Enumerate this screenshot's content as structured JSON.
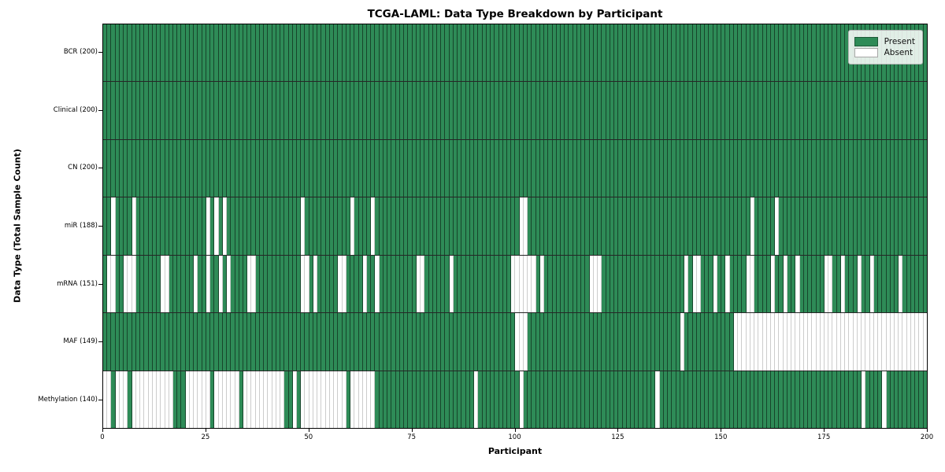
{
  "title": "TCGA-LAML: Data Type Breakdown by Participant",
  "x_axis": {
    "label": "Participant",
    "ticks": [
      0,
      25,
      50,
      75,
      100,
      125,
      150,
      175,
      200
    ]
  },
  "y_axis": {
    "label": "Data Type (Total Sample Count)"
  },
  "legend": {
    "present_label": "Present",
    "absent_label": "Absent"
  },
  "colors": {
    "present": "#2e8b57",
    "absent": "#ffffff",
    "cell_edge_on_present": "rgba(0,0,0,0.50)",
    "cell_edge_on_absent": "rgba(0,0,0,0.20)",
    "row_separator": "rgba(0,0,0,0.85)",
    "spine": "#000000",
    "legend_bg": "rgba(255,255,255,0.85)",
    "legend_border": "#b4b4b4"
  },
  "chart_data": {
    "type": "heatmap",
    "title": "TCGA-LAML: Data Type Breakdown by Participant",
    "xlabel": "Participant",
    "ylabel": "Data Type (Total Sample Count)",
    "x_range": [
      0,
      200
    ],
    "n_participants": 200,
    "grid": false,
    "legend_position": "upper right",
    "legend_entries": [
      "Present",
      "Absent"
    ],
    "rows": [
      {
        "key": "bcr",
        "label": "BCR (200)",
        "data_type": "BCR",
        "present_count": 200,
        "absent_participants": []
      },
      {
        "key": "clinical",
        "label": "Clinical (200)",
        "data_type": "Clinical",
        "present_count": 200,
        "absent_participants": []
      },
      {
        "key": "cn",
        "label": "CN (200)",
        "data_type": "CN",
        "present_count": 200,
        "absent_participants": []
      },
      {
        "key": "mir",
        "label": "miR (188)",
        "data_type": "miR",
        "present_count": 188,
        "absent_participants": [
          2,
          7,
          25,
          27,
          29,
          48,
          60,
          65,
          101,
          102,
          157,
          163
        ]
      },
      {
        "key": "mrna",
        "label": "mRNA (151)",
        "data_type": "mRNA",
        "present_count": 151,
        "absent_participants": [
          1,
          2,
          5,
          6,
          7,
          14,
          15,
          22,
          25,
          28,
          30,
          35,
          36,
          48,
          49,
          51,
          57,
          58,
          63,
          66,
          76,
          77,
          84,
          99,
          100,
          101,
          102,
          103,
          104,
          106,
          118,
          119,
          120,
          141,
          143,
          144,
          148,
          151,
          156,
          157,
          162,
          165,
          168,
          175,
          176,
          179,
          183,
          186,
          193
        ]
      },
      {
        "key": "maf",
        "label": "MAF (149)",
        "data_type": "MAF",
        "present_count": 149,
        "absent_participants": [
          100,
          101,
          102,
          140,
          153,
          154,
          155,
          156,
          157,
          158,
          159,
          160,
          161,
          162,
          163,
          164,
          165,
          166,
          167,
          168,
          169,
          170,
          171,
          172,
          173,
          174,
          175,
          176,
          177,
          178,
          179,
          180,
          181,
          182,
          183,
          184,
          185,
          186,
          187,
          188,
          189,
          190,
          191,
          192,
          193,
          194,
          195,
          196,
          197,
          198,
          199
        ]
      },
      {
        "key": "methylation",
        "label": "Methylation (140)",
        "data_type": "Methylation",
        "present_count": 140,
        "absent_participants": [
          0,
          1,
          3,
          4,
          5,
          7,
          8,
          9,
          10,
          11,
          12,
          13,
          14,
          15,
          16,
          20,
          21,
          22,
          23,
          24,
          25,
          27,
          28,
          29,
          30,
          31,
          32,
          34,
          35,
          36,
          37,
          38,
          39,
          40,
          41,
          42,
          43,
          46,
          48,
          49,
          50,
          51,
          52,
          53,
          54,
          55,
          56,
          57,
          58,
          60,
          61,
          62,
          63,
          64,
          65,
          90,
          101,
          134,
          184,
          189
        ]
      }
    ]
  }
}
